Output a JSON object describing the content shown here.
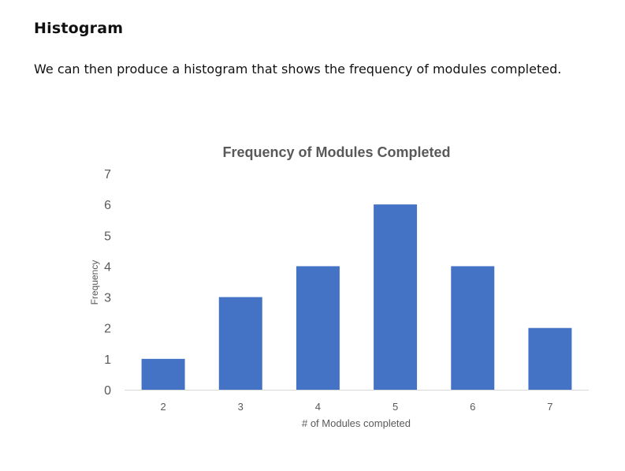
{
  "section": {
    "heading": "Histogram",
    "paragraph": "We can then produce a histogram that shows the frequency of modules completed."
  },
  "colors": {
    "bar": "#4472C4",
    "axis_text": "#595959",
    "title_text": "#595959",
    "baseline": "#D9D9D9"
  },
  "chart_data": {
    "type": "bar",
    "title": "Frequency of Modules Completed",
    "xlabel": "# of Modules completed",
    "ylabel": "Frequency",
    "categories": [
      "2",
      "3",
      "4",
      "5",
      "6",
      "7"
    ],
    "values": [
      1,
      3,
      4,
      6,
      4,
      2
    ],
    "ylim": [
      0,
      7
    ],
    "yticks": [
      0,
      1,
      2,
      3,
      4,
      5,
      6,
      7
    ],
    "grid": false,
    "legend": "none"
  }
}
